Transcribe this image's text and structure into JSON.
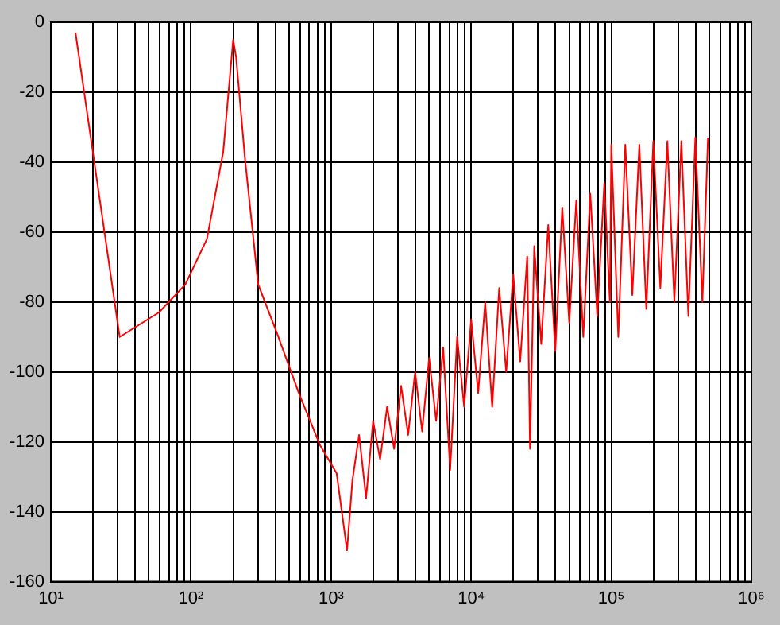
{
  "chart_data": {
    "type": "line",
    "log": "x",
    "grid": true,
    "line_style": "solid",
    "xlim": [
      10,
      1000000
    ],
    "xticks": [
      {
        "value": 10,
        "label": "10¹"
      },
      {
        "value": 20,
        "label": null
      },
      {
        "value": 30,
        "label": null
      },
      {
        "value": 40,
        "label": null
      },
      {
        "value": 50,
        "label": null
      },
      {
        "value": 60,
        "label": null
      },
      {
        "value": 70,
        "label": null
      },
      {
        "value": 80,
        "label": null
      },
      {
        "value": 90,
        "label": null
      },
      {
        "value": 100,
        "label": "10²"
      },
      {
        "value": 200,
        "label": null
      },
      {
        "value": 300,
        "label": null
      },
      {
        "value": 400,
        "label": null
      },
      {
        "value": 500,
        "label": null
      },
      {
        "value": 600,
        "label": null
      },
      {
        "value": 700,
        "label": null
      },
      {
        "value": 800,
        "label": null
      },
      {
        "value": 900,
        "label": null
      },
      {
        "value": 1000,
        "label": "10³"
      },
      {
        "value": 2000,
        "label": null
      },
      {
        "value": 3000,
        "label": null
      },
      {
        "value": 4000,
        "label": null
      },
      {
        "value": 5000,
        "label": null
      },
      {
        "value": 6000,
        "label": null
      },
      {
        "value": 7000,
        "label": null
      },
      {
        "value": 8000,
        "label": null
      },
      {
        "value": 9000,
        "label": null
      },
      {
        "value": 10000,
        "label": "10⁴"
      },
      {
        "value": 20000,
        "label": null
      },
      {
        "value": 30000,
        "label": null
      },
      {
        "value": 40000,
        "label": null
      },
      {
        "value": 50000,
        "label": null
      },
      {
        "value": 60000,
        "label": null
      },
      {
        "value": 70000,
        "label": null
      },
      {
        "value": 80000,
        "label": null
      },
      {
        "value": 90000,
        "label": null
      },
      {
        "value": 100000,
        "label": "10⁵"
      },
      {
        "value": 200000,
        "label": null
      },
      {
        "value": 300000,
        "label": null
      },
      {
        "value": 400000,
        "label": null
      },
      {
        "value": 500000,
        "label": null
      },
      {
        "value": 600000,
        "label": null
      },
      {
        "value": 700000,
        "label": null
      },
      {
        "value": 800000,
        "label": null
      },
      {
        "value": 900000,
        "label": null
      },
      {
        "value": 1000000,
        "label": "10⁶"
      }
    ],
    "ylim": [
      -160,
      0
    ],
    "yticks": [
      -160,
      -140,
      -120,
      -100,
      -80,
      -60,
      -40,
      -20,
      0
    ],
    "series": [
      {
        "color": "#ff0000",
        "x": [
          15,
          31,
          59,
          91,
          130,
          170,
          200,
          210,
          243,
          302,
          412,
          588,
          835,
          1096,
          1300,
          1420,
          1585,
          1778,
          1995,
          2239,
          2512,
          2818,
          3162,
          3548,
          3981,
          4467,
          5012,
          5623,
          6310,
          7079,
          7943,
          8913,
          10000,
          11220,
          12589,
          14125,
          15849,
          17783,
          19953,
          22387,
          25119,
          26303,
          28184,
          31623,
          35481,
          39811,
          44668,
          50119,
          56234,
          63096,
          70795,
          79433,
          89125,
          97724,
          100000,
          112202,
          125893,
          141254,
          158489,
          177828,
          199526,
          223872,
          251189,
          281838,
          316228,
          354813,
          398107,
          446684,
          489779
        ],
        "values": [
          -3,
          -90,
          -83,
          -75,
          -62,
          -37,
          -5,
          -10,
          -39,
          -75,
          -89,
          -106,
          -121,
          -129,
          -151,
          -131,
          -118,
          -136,
          -114,
          -125,
          -110,
          -122,
          -104,
          -118,
          -100,
          -117,
          -96,
          -114,
          -93,
          -128,
          -90,
          -110,
          -85,
          -106,
          -80,
          -110,
          -76,
          -100,
          -72,
          -97,
          -67,
          -122,
          -64,
          -92,
          -58,
          -94,
          -53,
          -86,
          -51,
          -90,
          -49,
          -84,
          -46,
          -80,
          -35,
          -90,
          -35,
          -78,
          -35,
          -82,
          -34,
          -76,
          -34,
          -80,
          -34,
          -84,
          -33,
          -80,
          -33
        ]
      }
    ]
  }
}
